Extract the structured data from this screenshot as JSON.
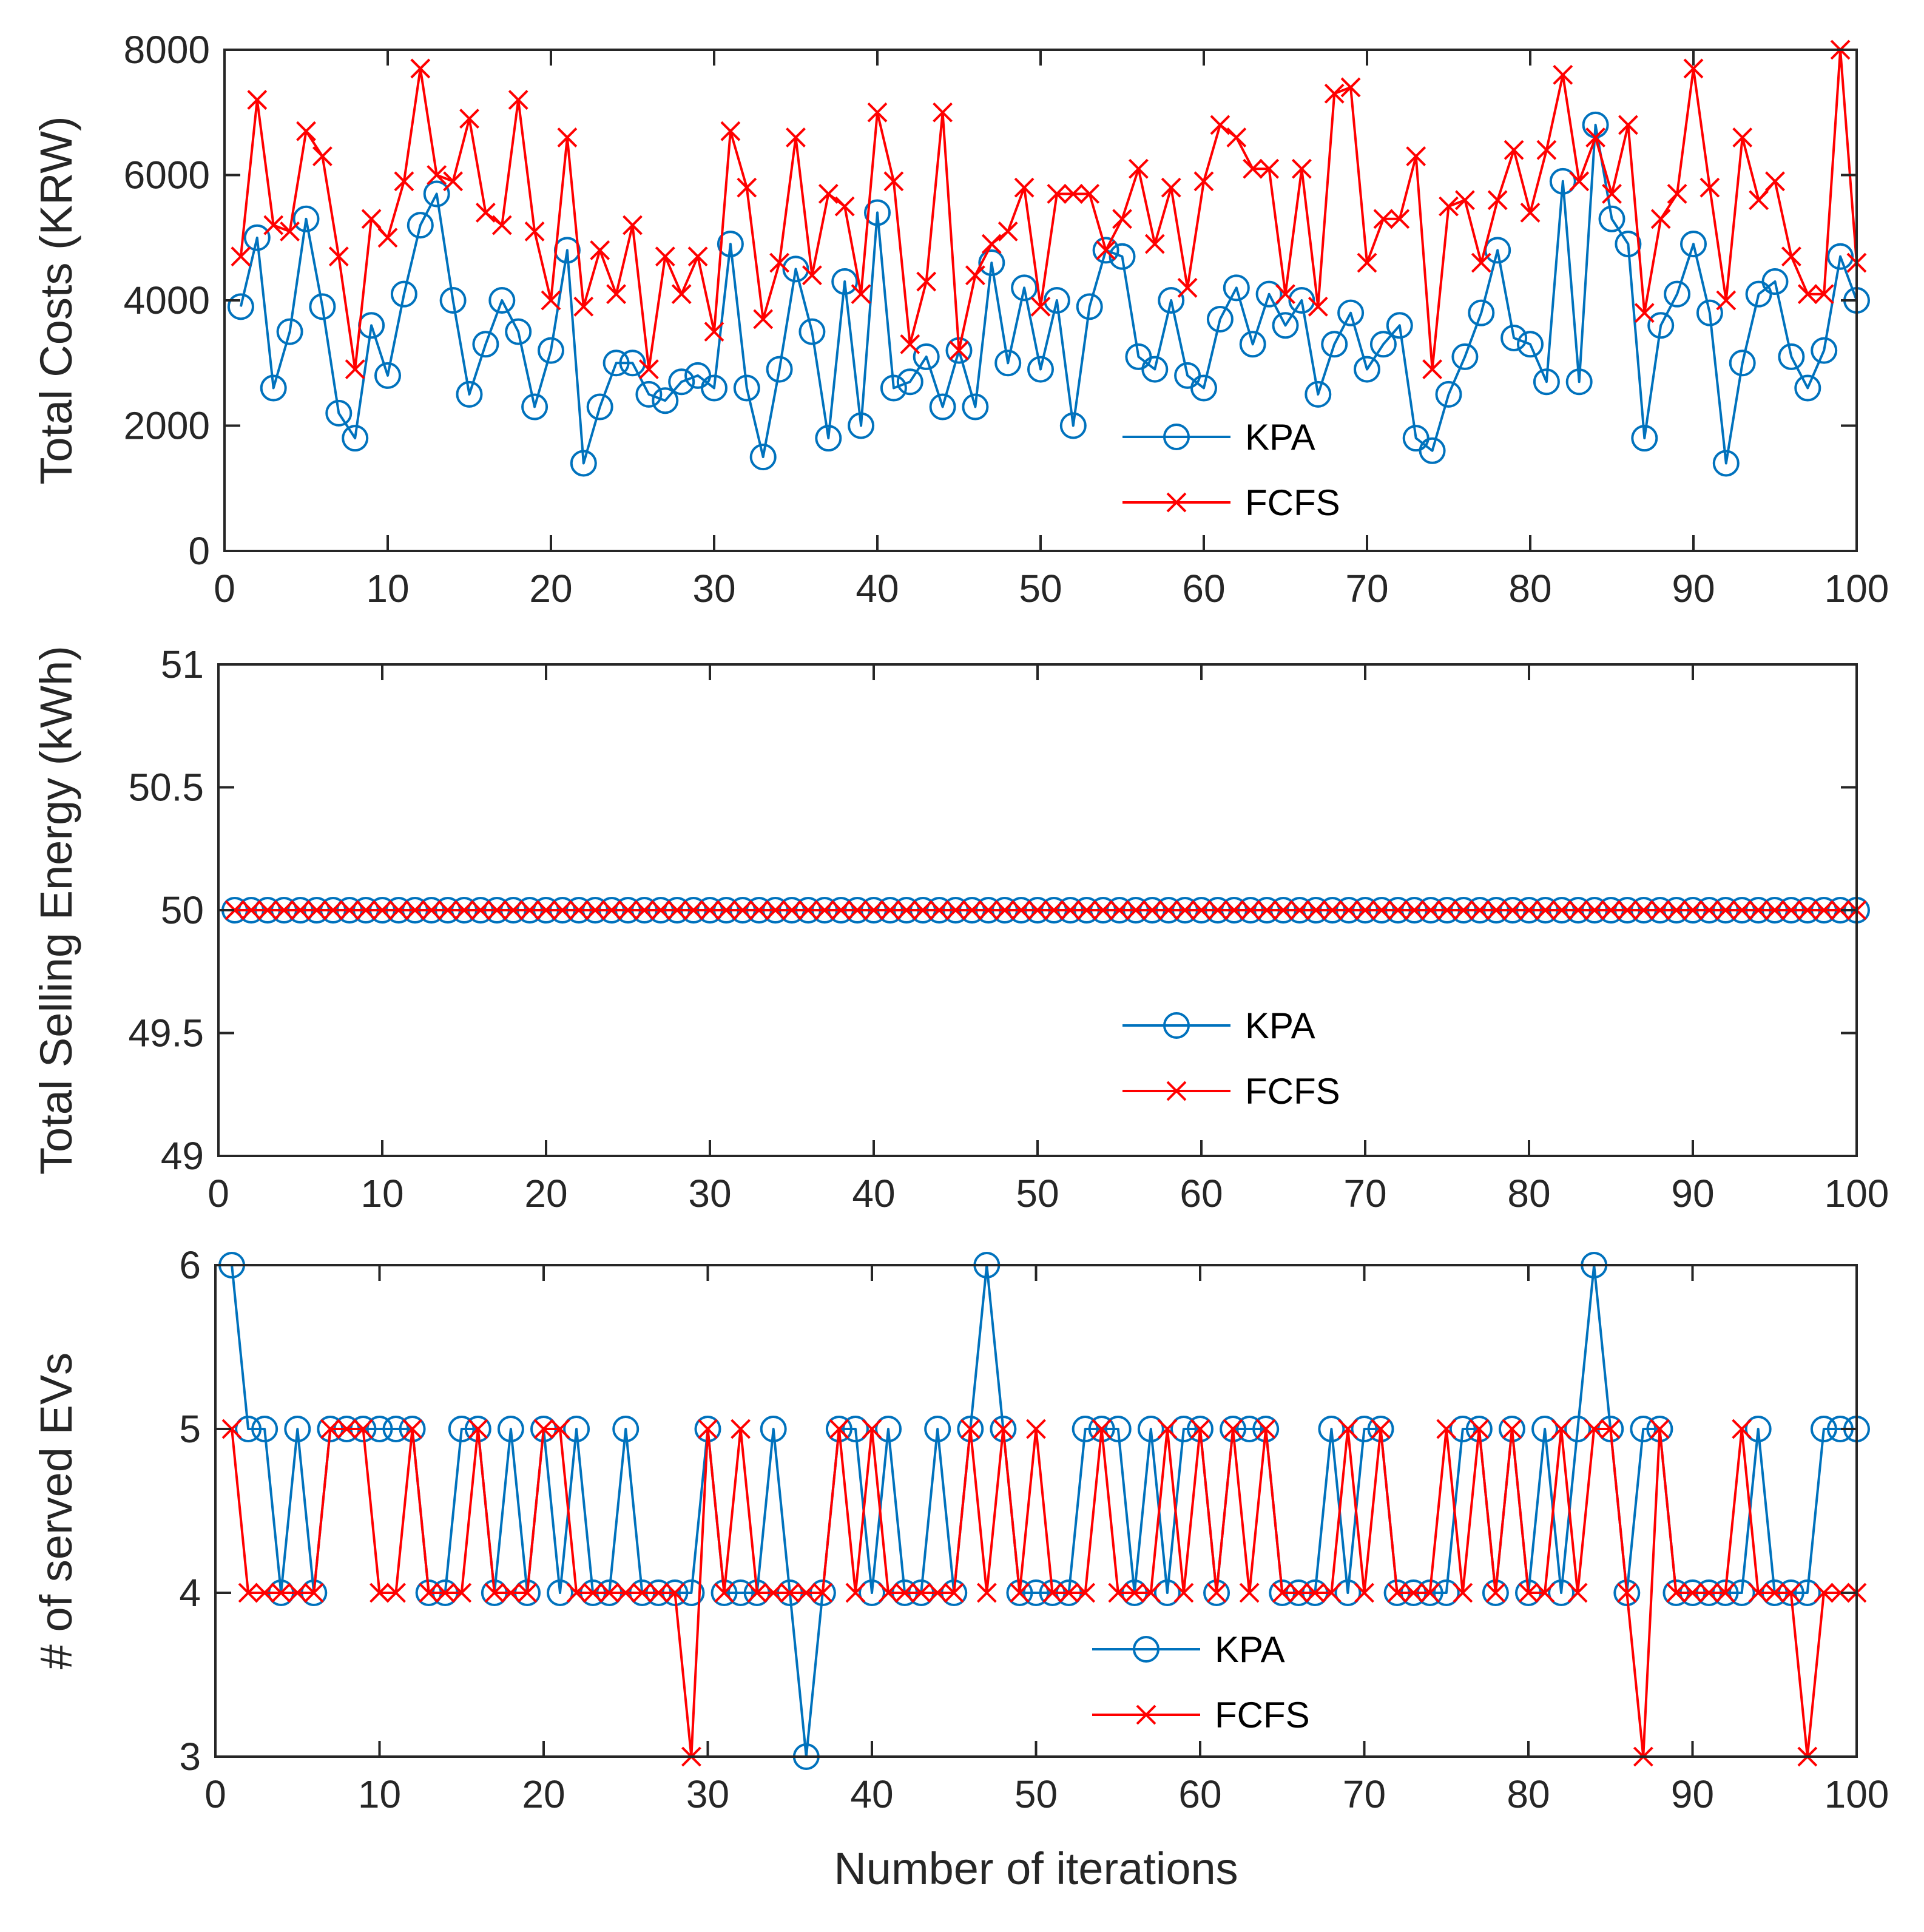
{
  "chart_data": [
    {
      "type": "line",
      "title": "",
      "xlabel": "",
      "ylabel": "Total Costs (KRW)",
      "xlim": [
        0,
        100
      ],
      "ylim": [
        0,
        8000
      ],
      "xticks": [
        0,
        10,
        20,
        30,
        40,
        50,
        60,
        70,
        80,
        90,
        100
      ],
      "yticks": [
        0,
        2000,
        4000,
        6000,
        8000
      ],
      "grid": false,
      "legend": "bottom-center",
      "series": [
        {
          "name": "KPA",
          "color": "#0072BD",
          "marker": "circle",
          "values": [
            3900,
            5000,
            2600,
            3500,
            5300,
            3900,
            2200,
            1800,
            3600,
            2800,
            4100,
            5200,
            5700,
            4000,
            2500,
            3300,
            4000,
            3500,
            2300,
            3200,
            4800,
            1400,
            2300,
            3000,
            3000,
            2500,
            2400,
            2700,
            2800,
            2600,
            4900,
            2600,
            1500,
            2900,
            4500,
            3500,
            1800,
            4300,
            2000,
            5400,
            2600,
            2700,
            3100,
            2300,
            3200,
            2300,
            4600,
            3000,
            4200,
            2900,
            4000,
            2000,
            3900,
            4800,
            4700,
            3100,
            2900,
            4000,
            2800,
            2600,
            3700,
            4200,
            3300,
            4100,
            3600,
            4000,
            2500,
            3300,
            3800,
            2900,
            3300,
            3600,
            1800,
            1600,
            2500,
            3100,
            3800,
            4800,
            3400,
            3300,
            2700,
            5900,
            2700,
            6800,
            5300,
            4900,
            1800,
            3600,
            4100,
            4900,
            3800,
            1400,
            3000,
            4100,
            4300,
            3100,
            2600,
            3200,
            4700,
            4000
          ]
        },
        {
          "name": "FCFS",
          "color": "#FF0000",
          "marker": "x",
          "values": [
            4700,
            7200,
            5200,
            5100,
            6700,
            6300,
            4700,
            2900,
            5300,
            5000,
            5900,
            7700,
            6000,
            5900,
            6900,
            5400,
            5200,
            7200,
            5100,
            4000,
            6600,
            3900,
            4800,
            4100,
            5200,
            2900,
            4700,
            4100,
            4700,
            3500,
            6700,
            5800,
            3700,
            4600,
            6600,
            4400,
            5700,
            5500,
            4100,
            7000,
            5900,
            3300,
            4300,
            7000,
            3200,
            4400,
            4900,
            5100,
            5800,
            3900,
            5700,
            5700,
            5700,
            4800,
            5300,
            6100,
            4900,
            5800,
            4200,
            5900,
            6800,
            6600,
            6100,
            6100,
            4100,
            6100,
            3900,
            7300,
            7400,
            4600,
            5300,
            5300,
            6300,
            2900,
            5500,
            5600,
            4600,
            5600,
            6400,
            5400,
            6400,
            7600,
            5900,
            6600,
            5700,
            6800,
            3800,
            5300,
            5700,
            7700,
            5800,
            4000,
            6600,
            5600,
            5900,
            4700,
            4100,
            4100,
            8000,
            4600
          ]
        }
      ]
    },
    {
      "type": "line",
      "title": "",
      "xlabel": "",
      "ylabel": "Total Selling Energy (kWh)",
      "xlim": [
        0,
        100
      ],
      "ylim": [
        49,
        51
      ],
      "xticks": [
        0,
        10,
        20,
        30,
        40,
        50,
        60,
        70,
        80,
        90,
        100
      ],
      "yticks": [
        49,
        49.5,
        50,
        50.5,
        51
      ],
      "grid": false,
      "legend": "bottom-center",
      "series": [
        {
          "name": "KPA",
          "color": "#0072BD",
          "marker": "circle",
          "values": [
            50,
            50,
            50,
            50,
            50,
            50,
            50,
            50,
            50,
            50,
            50,
            50,
            50,
            50,
            50,
            50,
            50,
            50,
            50,
            50,
            50,
            50,
            50,
            50,
            50,
            50,
            50,
            50,
            50,
            50,
            50,
            50,
            50,
            50,
            50,
            50,
            50,
            50,
            50,
            50,
            50,
            50,
            50,
            50,
            50,
            50,
            50,
            50,
            50,
            50,
            50,
            50,
            50,
            50,
            50,
            50,
            50,
            50,
            50,
            50,
            50,
            50,
            50,
            50,
            50,
            50,
            50,
            50,
            50,
            50,
            50,
            50,
            50,
            50,
            50,
            50,
            50,
            50,
            50,
            50,
            50,
            50,
            50,
            50,
            50,
            50,
            50,
            50,
            50,
            50,
            50,
            50,
            50,
            50,
            50,
            50,
            50,
            50,
            50,
            50
          ]
        },
        {
          "name": "FCFS",
          "color": "#FF0000",
          "marker": "x",
          "values": [
            50,
            50,
            50,
            50,
            50,
            50,
            50,
            50,
            50,
            50,
            50,
            50,
            50,
            50,
            50,
            50,
            50,
            50,
            50,
            50,
            50,
            50,
            50,
            50,
            50,
            50,
            50,
            50,
            50,
            50,
            50,
            50,
            50,
            50,
            50,
            50,
            50,
            50,
            50,
            50,
            50,
            50,
            50,
            50,
            50,
            50,
            50,
            50,
            50,
            50,
            50,
            50,
            50,
            50,
            50,
            50,
            50,
            50,
            50,
            50,
            50,
            50,
            50,
            50,
            50,
            50,
            50,
            50,
            50,
            50,
            50,
            50,
            50,
            50,
            50,
            50,
            50,
            50,
            50,
            50,
            50,
            50,
            50,
            50,
            50,
            50,
            50,
            50,
            50,
            50,
            50,
            50,
            50,
            50,
            50,
            50,
            50,
            50,
            50,
            50
          ]
        }
      ]
    },
    {
      "type": "line",
      "title": "",
      "xlabel": "Number of iterations",
      "ylabel": "# of served EVs",
      "xlim": [
        0,
        100
      ],
      "ylim": [
        3,
        6
      ],
      "xticks": [
        0,
        10,
        20,
        30,
        40,
        50,
        60,
        70,
        80,
        90,
        100
      ],
      "yticks": [
        3,
        4,
        5,
        6
      ],
      "grid": false,
      "legend": "bottom-center",
      "series": [
        {
          "name": "KPA",
          "color": "#0072BD",
          "marker": "circle",
          "values": [
            6,
            5,
            5,
            4,
            5,
            4,
            5,
            5,
            5,
            5,
            5,
            5,
            4,
            4,
            5,
            5,
            4,
            5,
            4,
            5,
            4,
            5,
            4,
            4,
            5,
            4,
            4,
            4,
            4,
            5,
            4,
            4,
            4,
            5,
            4,
            3,
            4,
            5,
            5,
            4,
            5,
            4,
            4,
            5,
            4,
            5,
            6,
            5,
            4,
            4,
            4,
            4,
            5,
            5,
            5,
            4,
            5,
            4,
            5,
            5,
            4,
            5,
            5,
            5,
            4,
            4,
            4,
            5,
            4,
            5,
            5,
            4,
            4,
            4,
            4,
            5,
            5,
            4,
            5,
            4,
            5,
            4,
            5,
            6,
            5,
            4,
            5,
            5,
            4,
            4,
            4,
            4,
            4,
            5,
            4,
            4,
            4,
            5,
            5,
            5
          ]
        },
        {
          "name": "FCFS",
          "color": "#FF0000",
          "marker": "x",
          "values": [
            5,
            4,
            4,
            4,
            4,
            4,
            5,
            5,
            5,
            4,
            4,
            5,
            4,
            4,
            4,
            5,
            4,
            4,
            4,
            5,
            5,
            4,
            4,
            4,
            4,
            4,
            4,
            4,
            3,
            5,
            4,
            5,
            4,
            4,
            4,
            4,
            4,
            5,
            4,
            5,
            4,
            4,
            4,
            4,
            4,
            5,
            4,
            5,
            4,
            5,
            4,
            4,
            4,
            5,
            4,
            4,
            4,
            5,
            4,
            5,
            4,
            5,
            4,
            5,
            4,
            4,
            4,
            4,
            5,
            4,
            5,
            4,
            4,
            4,
            5,
            4,
            5,
            4,
            5,
            4,
            4,
            5,
            4,
            5,
            5,
            4,
            3,
            5,
            4,
            4,
            4,
            4,
            5,
            4,
            4,
            4,
            3,
            4,
            4,
            4
          ]
        }
      ]
    }
  ]
}
